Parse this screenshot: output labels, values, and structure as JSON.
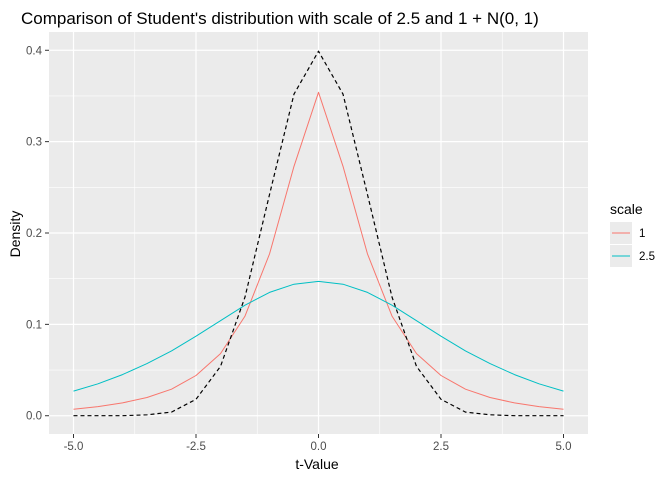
{
  "chart_data": {
    "type": "line",
    "title": "Comparison of Student's distribution with scale of 2.5 and 1 + N(0, 1)",
    "xlabel": "t-Value",
    "ylabel": "Density",
    "xlim": [
      -5.5,
      5.5
    ],
    "ylim": [
      -0.02,
      0.42
    ],
    "x_ticks": [
      -5.0,
      -2.5,
      0.0,
      2.5,
      5.0
    ],
    "x_tick_labels": [
      "-5.0",
      "-2.5",
      "0.0",
      "2.5",
      "5.0"
    ],
    "y_ticks": [
      0.0,
      0.1,
      0.2,
      0.3,
      0.4
    ],
    "y_tick_labels": [
      "0.0",
      "0.1",
      "0.2",
      "0.3",
      "0.4"
    ],
    "grid": true,
    "legend": {
      "title": "scale",
      "position": "right",
      "entries": [
        {
          "label": "1",
          "color": "#F8766D"
        },
        {
          "label": "2.5",
          "color": "#00BFC4"
        }
      ]
    },
    "x": [
      -5.0,
      -4.5,
      -4.0,
      -3.5,
      -3.0,
      -2.5,
      -2.0,
      -1.5,
      -1.0,
      -0.5,
      0.0,
      0.5,
      1.0,
      1.5,
      2.0,
      2.5,
      3.0,
      3.5,
      4.0,
      4.5,
      5.0
    ],
    "series": [
      {
        "name": "1",
        "color": "#F8766D",
        "dash": "solid",
        "values": [
          0.007,
          0.01,
          0.014,
          0.02,
          0.029,
          0.044,
          0.068,
          0.109,
          0.177,
          0.273,
          0.354,
          0.273,
          0.177,
          0.109,
          0.068,
          0.044,
          0.029,
          0.02,
          0.014,
          0.01,
          0.007
        ]
      },
      {
        "name": "2.5",
        "color": "#00BFC4",
        "dash": "solid",
        "values": [
          0.027,
          0.035,
          0.045,
          0.057,
          0.071,
          0.087,
          0.104,
          0.121,
          0.135,
          0.144,
          0.147,
          0.144,
          0.135,
          0.121,
          0.104,
          0.087,
          0.071,
          0.057,
          0.045,
          0.035,
          0.027
        ]
      },
      {
        "color": "#000000",
        "dash": "dashed",
        "values": [
          0.0,
          0.0,
          0.0,
          0.001,
          0.004,
          0.018,
          0.054,
          0.13,
          0.242,
          0.352,
          0.399,
          0.352,
          0.242,
          0.13,
          0.054,
          0.018,
          0.004,
          0.001,
          0.0,
          0.0,
          0.0
        ]
      }
    ]
  }
}
